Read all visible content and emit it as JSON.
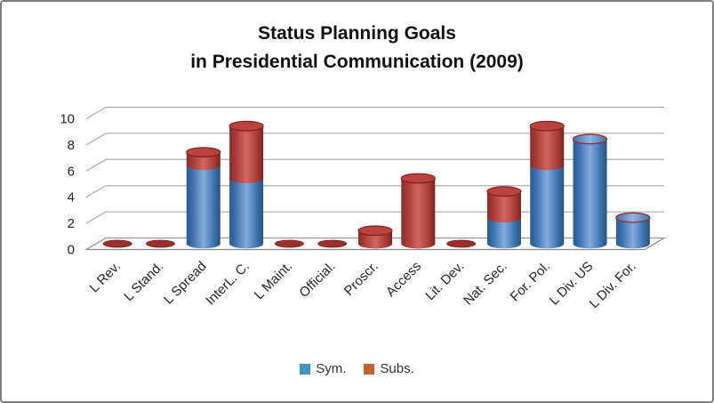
{
  "frame": {
    "border_color": "#7F7F7F",
    "background": "#FFFFFF"
  },
  "chart_data": {
    "type": "bar",
    "subtype": "3d-stacked-cylinder",
    "title_line1": "Status Planning Goals",
    "title_line2": "in Presidential Communication (2009)",
    "categories": [
      "L Rev.",
      "L Stand.",
      "L Spread",
      "InterL. C.",
      "L Maint.",
      "Official.",
      "Proscr.",
      "Access",
      "Lit. Dev.",
      "Nat. Sec.",
      "For. Pol.",
      "L Div. US",
      "L Div. For."
    ],
    "series": [
      {
        "name": "Sym.",
        "color": "#4F81BD",
        "legend_color": "#3E94C7",
        "values": [
          0,
          0,
          6,
          5,
          0,
          0,
          0,
          0,
          0,
          2,
          6,
          8,
          2
        ]
      },
      {
        "name": "Subs.",
        "color": "#C0504D",
        "legend_color": "#C5632E",
        "values": [
          0,
          0,
          1,
          4,
          0,
          0,
          1,
          5,
          0,
          2,
          3,
          0,
          0
        ]
      }
    ],
    "totals": [
      0,
      0,
      7,
      9,
      0,
      0,
      1,
      5,
      0,
      4,
      9,
      8,
      2
    ],
    "y_axis": {
      "min": 0,
      "max": 10,
      "step": 2,
      "ticks": [
        0,
        2,
        4,
        6,
        8,
        10
      ]
    },
    "grid": true,
    "gridline_color": "#9C9C9C",
    "axis_text_color": "#262626",
    "legend_position": "bottom"
  }
}
